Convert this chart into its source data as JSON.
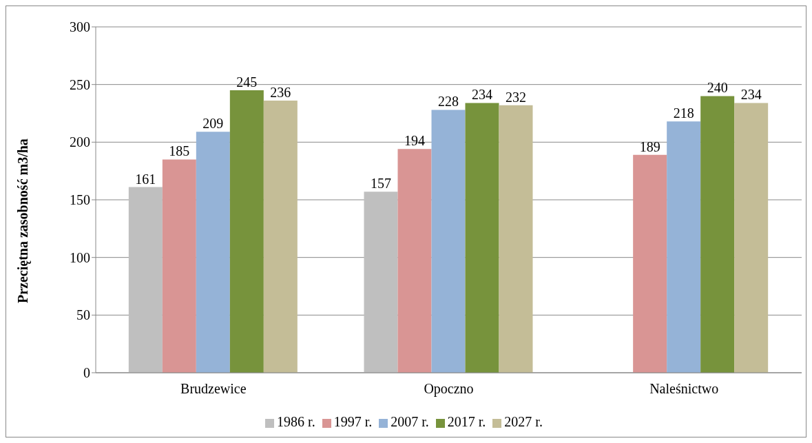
{
  "chart_data": {
    "type": "bar",
    "ylabel": "Przeciętna zasobność m3/ha",
    "categories": [
      "Brudzewice",
      "Opoczno",
      "Naleśnictwo"
    ],
    "series": [
      {
        "name": "1986 r.",
        "color": "#bfbfbf",
        "values": [
          161,
          157,
          null
        ]
      },
      {
        "name": "1997 r.",
        "color": "#d99594",
        "values": [
          185,
          194,
          189
        ]
      },
      {
        "name": "2007 r.",
        "color": "#95b3d7",
        "values": [
          209,
          228,
          218
        ]
      },
      {
        "name": "2017 r.",
        "color": "#77933c",
        "values": [
          245,
          234,
          240
        ]
      },
      {
        "name": "2027 r.",
        "color": "#c4bd97",
        "values": [
          236,
          232,
          234
        ]
      }
    ],
    "ylim": [
      0,
      300
    ],
    "yticks": [
      0,
      50,
      100,
      150,
      200,
      250,
      300
    ],
    "grid": "y",
    "legend": "bottom",
    "data_labels": true
  }
}
